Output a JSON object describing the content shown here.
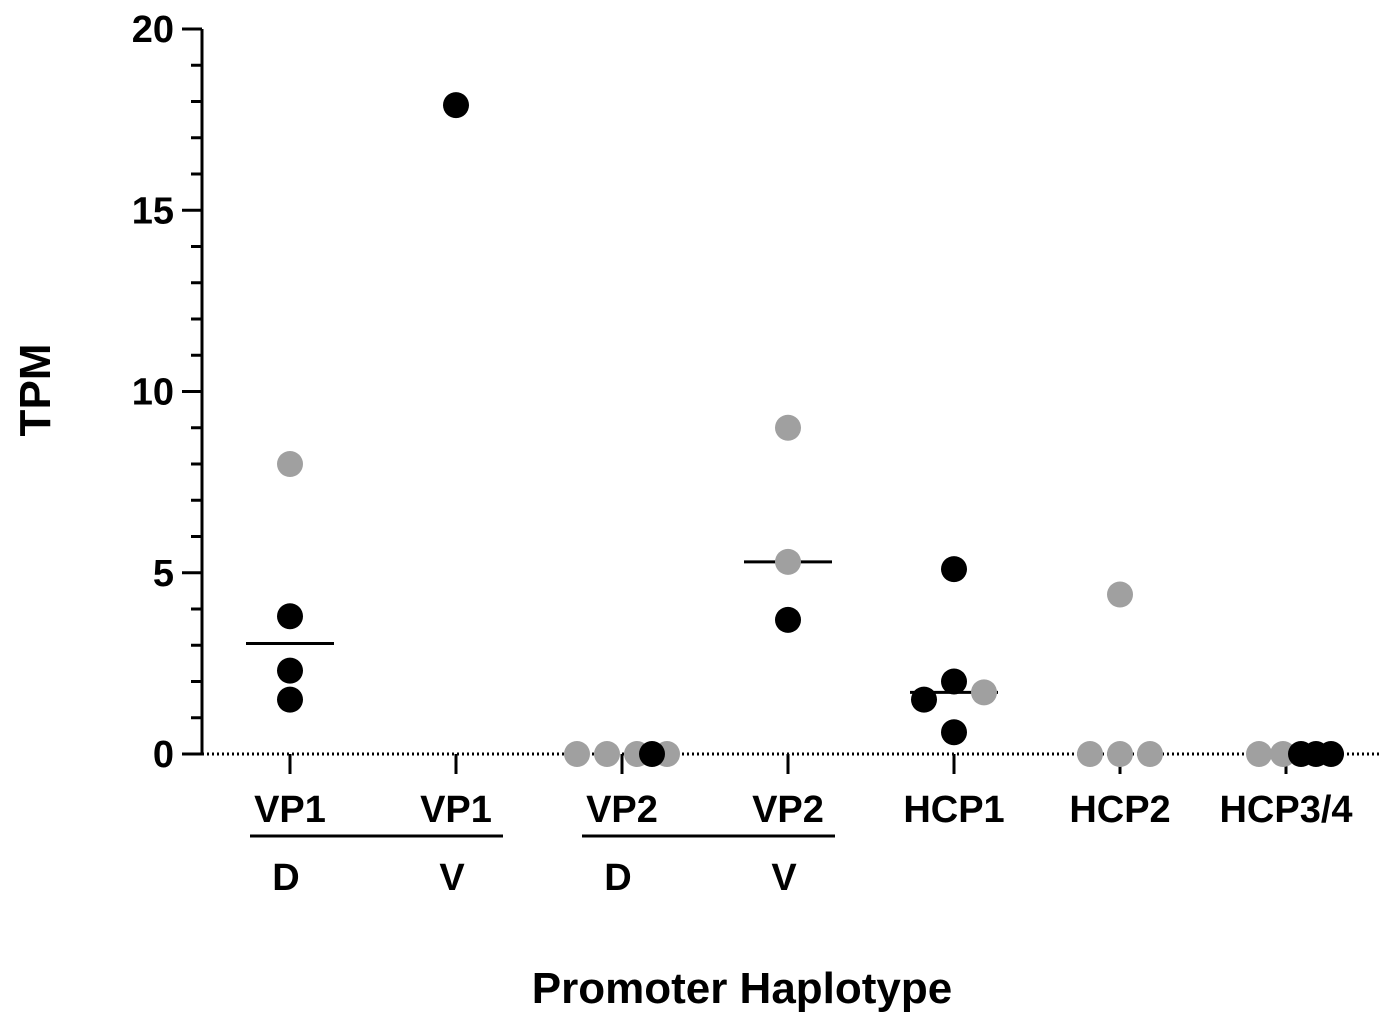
{
  "chart_data": {
    "type": "scatter",
    "title": "",
    "xlabel": "Promoter Haplotype",
    "ylabel": "TPM",
    "ylim": [
      0,
      20
    ],
    "yticks": [
      0,
      5,
      10,
      15,
      20
    ],
    "grid": false,
    "legend": "none",
    "categories": [
      "VP1",
      "VP1",
      "VP2",
      "VP2",
      "HCP1",
      "HCP2",
      "HCP3/4"
    ],
    "category_groups": [
      {
        "label": "D",
        "categories": [
          0
        ]
      },
      {
        "label": "V",
        "categories": [
          1
        ]
      },
      {
        "label": "D",
        "categories": [
          2
        ]
      },
      {
        "label": "V",
        "categories": [
          3
        ]
      }
    ],
    "underlines": [
      {
        "from": 0,
        "to": 1
      },
      {
        "from": 2,
        "to": 3
      }
    ],
    "colors": {
      "black": "#000000",
      "gray": "#a0a0a0"
    },
    "points": [
      {
        "category": 0,
        "offset": 0,
        "y": 8.0,
        "color": "gray"
      },
      {
        "category": 0,
        "offset": 0,
        "y": 3.8,
        "color": "black"
      },
      {
        "category": 0,
        "offset": 0,
        "y": 2.3,
        "color": "black"
      },
      {
        "category": 0,
        "offset": 0,
        "y": 1.5,
        "color": "black"
      },
      {
        "category": 1,
        "offset": 0,
        "y": 17.9,
        "color": "black"
      },
      {
        "category": 2,
        "offset": -1.5,
        "y": 0,
        "color": "gray"
      },
      {
        "category": 2,
        "offset": -0.5,
        "y": 0,
        "color": "gray"
      },
      {
        "category": 2,
        "offset": 0.5,
        "y": 0,
        "color": "gray"
      },
      {
        "category": 2,
        "offset": 1.5,
        "y": 0,
        "color": "gray"
      },
      {
        "category": 2,
        "offset": 1.0,
        "y": 0,
        "color": "black"
      },
      {
        "category": 3,
        "offset": 0,
        "y": 9.0,
        "color": "gray"
      },
      {
        "category": 3,
        "offset": 0,
        "y": 5.3,
        "color": "gray"
      },
      {
        "category": 3,
        "offset": 0,
        "y": 3.7,
        "color": "black"
      },
      {
        "category": 4,
        "offset": 0,
        "y": 5.1,
        "color": "black"
      },
      {
        "category": 4,
        "offset": 0,
        "y": 2.0,
        "color": "black"
      },
      {
        "category": 4,
        "offset": 1.0,
        "y": 1.7,
        "color": "gray"
      },
      {
        "category": 4,
        "offset": -1.0,
        "y": 1.5,
        "color": "black"
      },
      {
        "category": 4,
        "offset": 0,
        "y": 0.6,
        "color": "black"
      },
      {
        "category": 5,
        "offset": 0,
        "y": 4.4,
        "color": "gray"
      },
      {
        "category": 5,
        "offset": -1.0,
        "y": 0,
        "color": "gray"
      },
      {
        "category": 5,
        "offset": 0,
        "y": 0,
        "color": "gray"
      },
      {
        "category": 5,
        "offset": 1.0,
        "y": 0,
        "color": "gray"
      },
      {
        "category": 6,
        "offset": -0.9,
        "y": 0,
        "color": "gray"
      },
      {
        "category": 6,
        "offset": -0.1,
        "y": 0,
        "color": "gray"
      },
      {
        "category": 6,
        "offset": 0.5,
        "y": 0,
        "color": "black"
      },
      {
        "category": 6,
        "offset": 1.0,
        "y": 0,
        "color": "black"
      },
      {
        "category": 6,
        "offset": 1.5,
        "y": 0,
        "color": "black"
      }
    ],
    "medians": [
      {
        "category": 0,
        "y": 3.05
      },
      {
        "category": 3,
        "y": 5.3
      },
      {
        "category": 4,
        "y": 1.7
      }
    ]
  }
}
